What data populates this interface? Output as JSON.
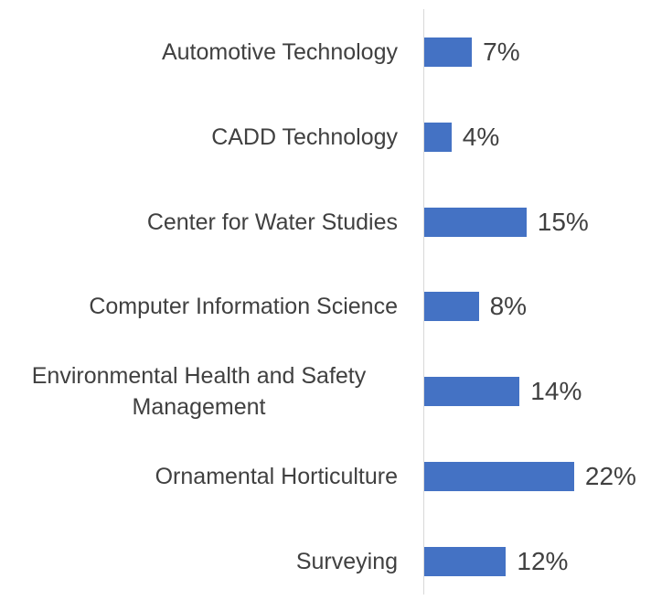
{
  "chart_data": {
    "type": "bar",
    "orientation": "horizontal",
    "categories": [
      "Automotive Technology",
      "CADD Technology",
      "Center for Water Studies",
      "Computer Information Science",
      "Environmental Health and Safety Management",
      "Ornamental Horticulture",
      "Surveying"
    ],
    "values": [
      7,
      4,
      15,
      8,
      14,
      22,
      12
    ],
    "value_labels": [
      "7%",
      "4%",
      "15%",
      "8%",
      "14%",
      "22%",
      "12%"
    ],
    "color": "#4472c4"
  }
}
